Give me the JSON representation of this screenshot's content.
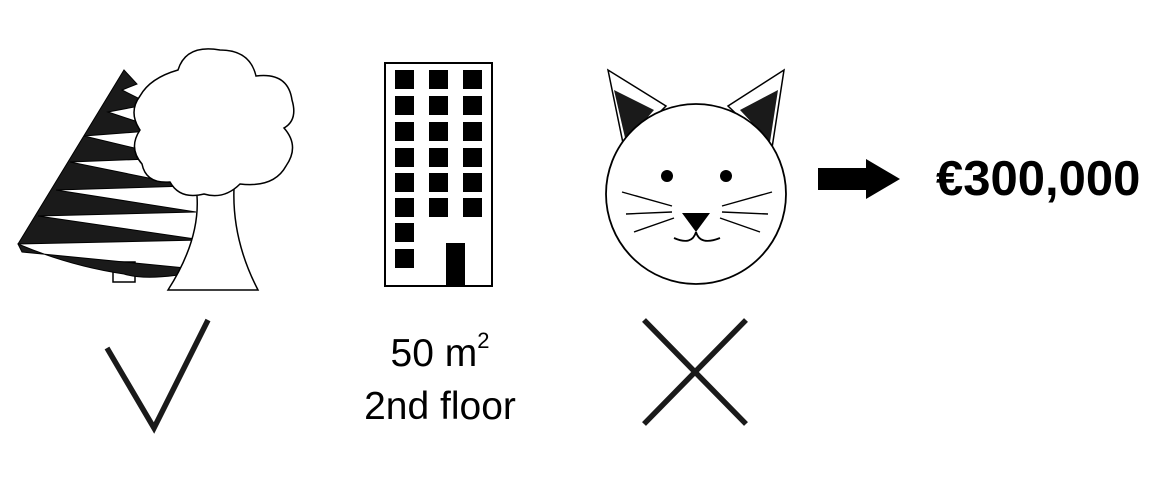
{
  "icons": {
    "trees": "forest-icon",
    "building": "apartment-building-icon",
    "cat": "cat-icon",
    "arrow": "arrow-right-icon",
    "check": "checkmark-icon",
    "cross": "cross-icon"
  },
  "apartment": {
    "area_value": "50 m",
    "area_unit_exponent": "2",
    "floor": "2nd floor"
  },
  "price": "€300,000",
  "colors": {
    "ink": "#000000",
    "fill_dark": "#1a1a1a",
    "background": "#ffffff"
  }
}
